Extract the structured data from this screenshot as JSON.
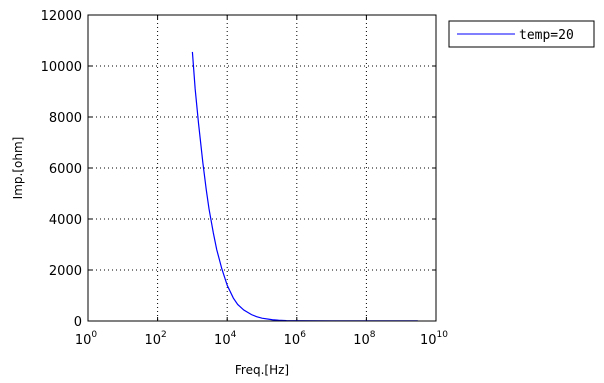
{
  "chart_data": {
    "type": "line",
    "xscale": "log",
    "xlabel": "Freq.[Hz]",
    "ylabel": "Imp.[ohm]",
    "xlim": [
      1,
      10000000000
    ],
    "ylim": [
      0,
      12000
    ],
    "x_ticks": [
      {
        "base": "10",
        "exp": "0",
        "value": 1
      },
      {
        "base": "10",
        "exp": "2",
        "value": 100
      },
      {
        "base": "10",
        "exp": "4",
        "value": 10000
      },
      {
        "base": "10",
        "exp": "6",
        "value": 1000000
      },
      {
        "base": "10",
        "exp": "8",
        "value": 100000000
      },
      {
        "base": "10",
        "exp": "10",
        "value": 10000000000
      }
    ],
    "y_ticks": [
      "0",
      "2000",
      "4000",
      "6000",
      "8000",
      "10000",
      "12000"
    ],
    "grid": true,
    "legend_position": "outside-top-right",
    "series": [
      {
        "name": "temp=20",
        "color": "#0000ff",
        "x": [
          1000,
          1200,
          1500,
          2000,
          2500,
          3000,
          4000,
          5000,
          7000,
          10000,
          15000,
          20000,
          30000,
          50000,
          70000,
          100000,
          200000,
          300000,
          500000,
          1000000,
          10000000,
          100000000,
          1000000000,
          3000000000
        ],
        "y": [
          10550,
          9100,
          7750,
          6200,
          5150,
          4400,
          3450,
          2800,
          2050,
          1400,
          900,
          650,
          430,
          250,
          170,
          110,
          50,
          30,
          15,
          10,
          5,
          5,
          5,
          5
        ]
      }
    ]
  }
}
